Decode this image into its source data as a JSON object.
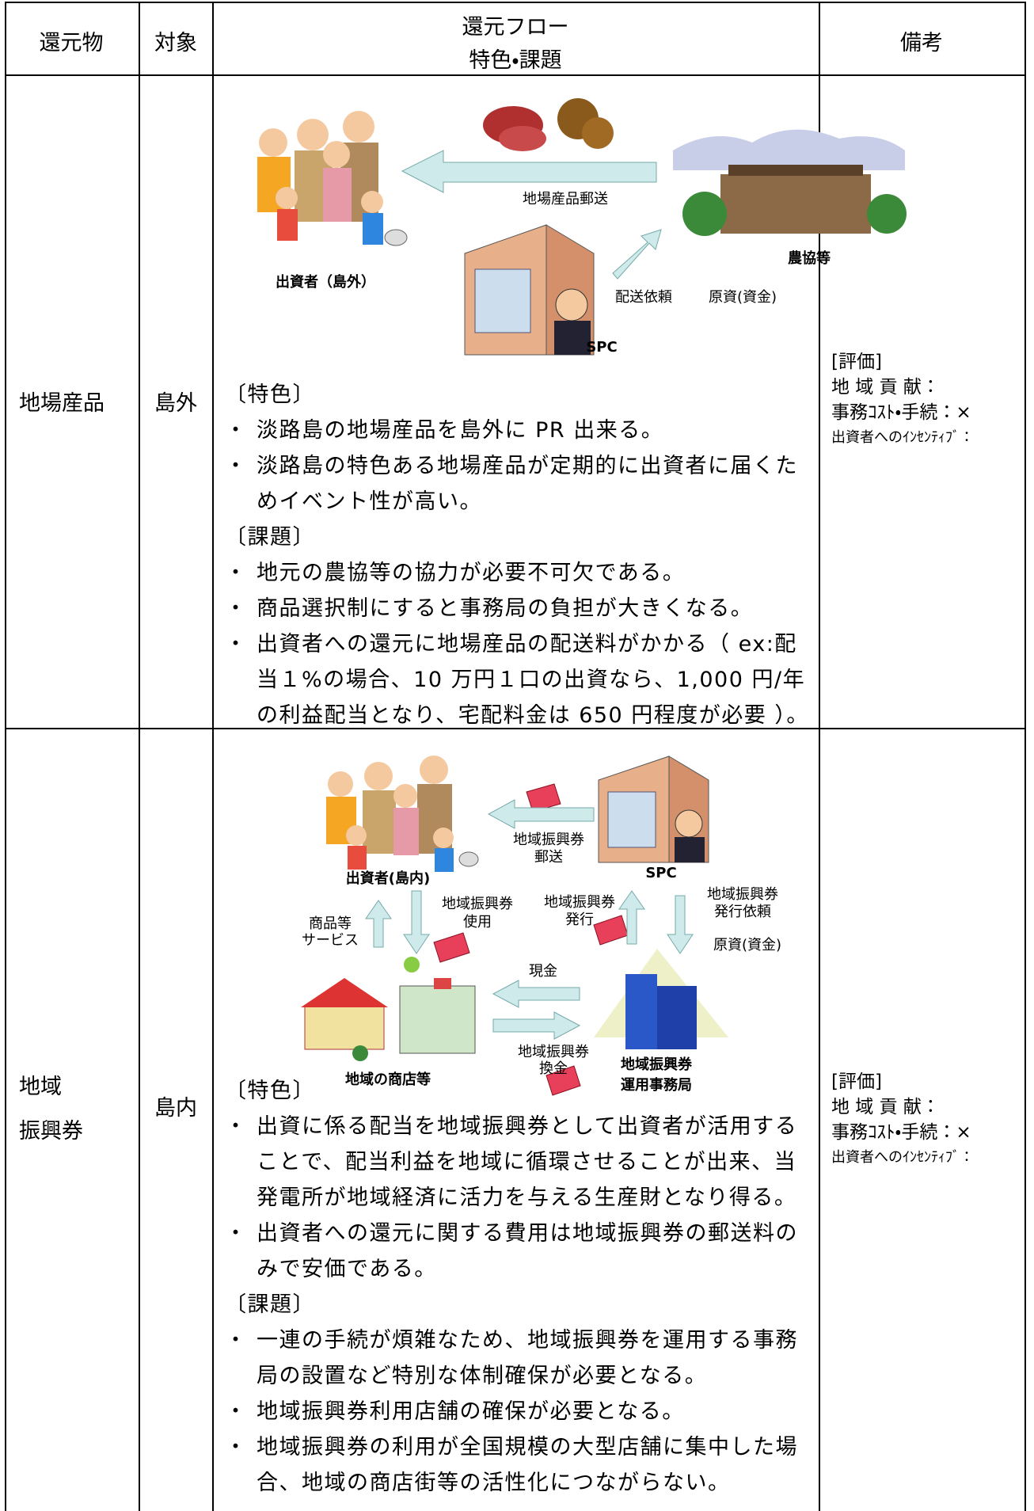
{
  "header": {
    "item": "還元物",
    "target": "対象",
    "flow": [
      "還元フロー",
      "特色・課題"
    ],
    "remarks": "備考"
  },
  "rows": [
    {
      "item": [
        "地場産品"
      ],
      "target": "島外",
      "diagram": {
        "labels": [
          "地場産品郵送",
          "農協等",
          "出資者（島外）",
          "配送依頼",
          "原資(資金)",
          "SPC"
        ]
      },
      "features_heading": "〔特色〕",
      "features": [
        "淡路島の地場産品を島外に PR 出来る。",
        "淡路島の特色ある地場産品が定期的に出資者に届くためイベント性が高い。"
      ],
      "issues_heading": "〔課題〕",
      "issues": [
        "地元の農協等の協力が必要不可欠である。",
        "商品選択制にすると事務局の負担が大きくなる。",
        "出資者への還元に地場産品の配送料がかかる（ ex:配当１%の場合、10 万円１口の出資なら、1,000 円/年の利益配当となり、宅配料金は 650 円程度が必要 ）。"
      ],
      "remarks": [
        "[評価]",
        "地 域 貢 献：",
        "事務ｺｽﾄ・手続：×",
        "出資者へのｲﾝｾﾝﾃｨﾌﾞ："
      ]
    },
    {
      "item": [
        "地域",
        "振興券"
      ],
      "target": "島内",
      "diagram": {
        "labels": [
          "地域振興券",
          "郵送",
          "出資者(島内)",
          "SPC",
          "地域振興券",
          "使用",
          "地域振興券",
          "発行",
          "地域振興券",
          "発行依頼",
          "商品等",
          "サービス",
          "原資(資金)",
          "現金",
          "地域振興券",
          "換金",
          "地域の商店等",
          "地域振興券",
          "運用事務局"
        ]
      },
      "features_heading": "〔特色〕",
      "features": [
        "出資に係る配当を地域振興券として出資者が活用することで、配当利益を地域に循環させることが出来、当発電所が地域経済に活力を与える生産財となり得る。",
        "出資者への還元に関する費用は地域振興券の郵送料のみで安価である。"
      ],
      "issues_heading": "〔課題〕",
      "issues": [
        "一連の手続が煩雑なため、地域振興券を運用する事務局の設置など特別な体制確保が必要となる。",
        "地域振興券利用店舗の確保が必要となる。",
        "地域振興券の利用が全国規模の大型店舗に集中した場合、地域の商店街等の活性化につながらない。"
      ],
      "remarks": [
        "[評価]",
        "地 域 貢 献：",
        "事務ｺｽﾄ・手続：×",
        "出資者へのｲﾝｾﾝﾃｨﾌﾞ："
      ]
    }
  ]
}
